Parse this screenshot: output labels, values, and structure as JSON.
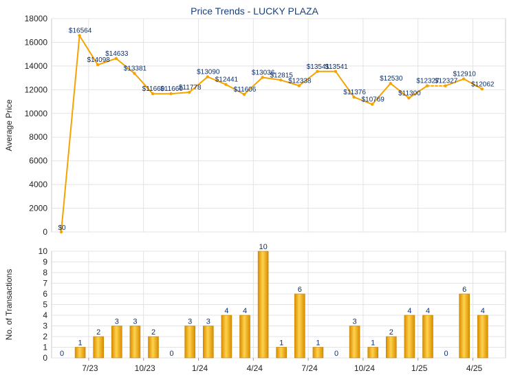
{
  "title": "Price Trends - LUCKY PLAZA",
  "colors": {
    "line": "#f5a300",
    "bar_light": "#ffd34d",
    "bar_dark": "#d98c00",
    "grid": "#e3e3e3",
    "label": "#0c2f6b",
    "title": "#1a3f7a",
    "axis_text": "#222222"
  },
  "chart_data": [
    {
      "type": "line",
      "ylabel": "Average Price",
      "ylim": [
        0,
        18000
      ],
      "yticks": [
        0,
        2000,
        4000,
        6000,
        8000,
        10000,
        12000,
        14000,
        16000,
        18000
      ],
      "values": [
        0,
        16564,
        14098,
        14633,
        13381,
        11660,
        11660,
        11778,
        13090,
        12441,
        11606,
        13036,
        12815,
        12338,
        13541,
        13541,
        11376,
        10769,
        12530,
        11300,
        12327,
        12327,
        12910,
        12062
      ],
      "labels": [
        "$0",
        "$16564",
        "$14098",
        "$14633",
        "$13381",
        "$11660",
        "$11660",
        "$11778",
        "$13090",
        "$12441",
        "$11606",
        "$13036",
        "$12815",
        "$12338",
        "$13541",
        "$13541",
        "$11376",
        "$10769",
        "$12530",
        "$11300",
        "$12327",
        "$12327",
        "$12910",
        "$12062"
      ],
      "dashed_segments": [
        20
      ]
    },
    {
      "type": "bar",
      "ylabel": "No. of Transactions",
      "ylim": [
        0,
        10
      ],
      "yticks": [
        0,
        1,
        2,
        3,
        4,
        5,
        6,
        7,
        8,
        9,
        10
      ],
      "values": [
        0,
        1,
        2,
        3,
        3,
        2,
        0,
        3,
        3,
        4,
        4,
        10,
        1,
        6,
        1,
        0,
        3,
        1,
        2,
        4,
        4,
        0,
        6,
        4
      ],
      "x_ticks": [
        {
          "index": 2,
          "label": "7/23"
        },
        {
          "index": 5,
          "label": "10/23"
        },
        {
          "index": 8,
          "label": "1/24"
        },
        {
          "index": 11,
          "label": "4/24"
        },
        {
          "index": 14,
          "label": "7/24"
        },
        {
          "index": 17,
          "label": "10/24"
        },
        {
          "index": 20,
          "label": "1/25"
        },
        {
          "index": 23,
          "label": "4/25"
        }
      ]
    }
  ]
}
